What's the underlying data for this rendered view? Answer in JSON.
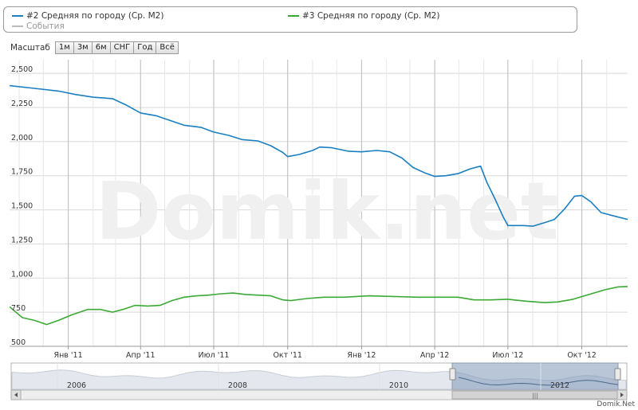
{
  "legend": {
    "items": [
      {
        "label": "#2 Средняя по городу (Ср. M2)",
        "color": "#1a7fc1"
      },
      {
        "label": "#3 Средняя по городу (Ср. M2)",
        "color": "#3aaa35"
      },
      {
        "label": "События",
        "color": "#bbbbbb"
      }
    ]
  },
  "scale": {
    "label": "Масштаб",
    "buttons": [
      "1м",
      "3м",
      "6м",
      "СНГ",
      "Год",
      "Всё"
    ]
  },
  "watermark": "Domik.net",
  "credit": "Domik.Net",
  "navigator": {
    "years": [
      "2006",
      "2008",
      "2010",
      "2012"
    ],
    "handle_label": "|||"
  },
  "chart_data": {
    "type": "line",
    "x_ticks": [
      "Янв '11",
      "Апр '11",
      "Июл '11",
      "Окт '11",
      "Янв '12",
      "Апр '12",
      "Июл '12",
      "Окт '12"
    ],
    "y_ticks": [
      "500",
      "750",
      "1,000",
      "1,250",
      "1,500",
      "1,750",
      "2,000",
      "2,250",
      "2,500"
    ],
    "ylim": [
      500,
      2600
    ],
    "x_range": [
      "2010-10-20",
      "2012-11-27"
    ],
    "grid": true,
    "legend_position": "top",
    "series": [
      {
        "name": "#2 Средняя по городу (Ср. M2)",
        "color": "#1a7fc1",
        "points": [
          [
            "2010-10-20",
            2410
          ],
          [
            "2010-11-20",
            2390
          ],
          [
            "2010-12-20",
            2370
          ],
          [
            "2011-01-10",
            2345
          ],
          [
            "2011-02-01",
            2325
          ],
          [
            "2011-02-25",
            2315
          ],
          [
            "2011-03-15",
            2265
          ],
          [
            "2011-04-01",
            2210
          ],
          [
            "2011-04-20",
            2190
          ],
          [
            "2011-05-05",
            2160
          ],
          [
            "2011-05-25",
            2120
          ],
          [
            "2011-06-15",
            2105
          ],
          [
            "2011-07-01",
            2070
          ],
          [
            "2011-07-20",
            2045
          ],
          [
            "2011-08-05",
            2015
          ],
          [
            "2011-08-25",
            2005
          ],
          [
            "2011-09-10",
            1970
          ],
          [
            "2011-09-25",
            1920
          ],
          [
            "2011-10-01",
            1890
          ],
          [
            "2011-10-15",
            1905
          ],
          [
            "2011-11-01",
            1935
          ],
          [
            "2011-11-10",
            1960
          ],
          [
            "2011-11-25",
            1955
          ],
          [
            "2011-12-15",
            1930
          ],
          [
            "2012-01-01",
            1925
          ],
          [
            "2012-01-20",
            1935
          ],
          [
            "2012-02-05",
            1925
          ],
          [
            "2012-02-20",
            1880
          ],
          [
            "2012-03-05",
            1810
          ],
          [
            "2012-03-20",
            1770
          ],
          [
            "2012-04-01",
            1745
          ],
          [
            "2012-04-15",
            1750
          ],
          [
            "2012-04-30",
            1765
          ],
          [
            "2012-05-15",
            1800
          ],
          [
            "2012-05-28",
            1820
          ],
          [
            "2012-06-05",
            1700
          ],
          [
            "2012-06-15",
            1580
          ],
          [
            "2012-06-25",
            1450
          ],
          [
            "2012-07-01",
            1385
          ],
          [
            "2012-07-20",
            1385
          ],
          [
            "2012-08-01",
            1380
          ],
          [
            "2012-08-15",
            1405
          ],
          [
            "2012-08-28",
            1430
          ],
          [
            "2012-09-10",
            1510
          ],
          [
            "2012-09-22",
            1600
          ],
          [
            "2012-10-01",
            1605
          ],
          [
            "2012-10-12",
            1560
          ],
          [
            "2012-10-25",
            1480
          ],
          [
            "2012-11-10",
            1455
          ],
          [
            "2012-11-27",
            1430
          ]
        ]
      },
      {
        "name": "#3 Средняя по городу (Ср. M2)",
        "color": "#3aaa35",
        "points": [
          [
            "2010-10-20",
            790
          ],
          [
            "2010-11-05",
            710
          ],
          [
            "2010-11-20",
            690
          ],
          [
            "2010-12-05",
            660
          ],
          [
            "2010-12-20",
            690
          ],
          [
            "2011-01-05",
            730
          ],
          [
            "2011-01-25",
            770
          ],
          [
            "2011-02-10",
            770
          ],
          [
            "2011-02-25",
            750
          ],
          [
            "2011-03-10",
            770
          ],
          [
            "2011-03-25",
            800
          ],
          [
            "2011-04-10",
            795
          ],
          [
            "2011-04-25",
            800
          ],
          [
            "2011-05-10",
            835
          ],
          [
            "2011-05-25",
            860
          ],
          [
            "2011-06-10",
            870
          ],
          [
            "2011-06-25",
            875
          ],
          [
            "2011-07-10",
            885
          ],
          [
            "2011-07-25",
            890
          ],
          [
            "2011-08-10",
            880
          ],
          [
            "2011-08-25",
            875
          ],
          [
            "2011-09-10",
            870
          ],
          [
            "2011-09-25",
            840
          ],
          [
            "2011-10-05",
            835
          ],
          [
            "2011-10-25",
            850
          ],
          [
            "2011-11-15",
            860
          ],
          [
            "2011-12-10",
            860
          ],
          [
            "2012-01-10",
            870
          ],
          [
            "2012-02-10",
            865
          ],
          [
            "2012-03-10",
            860
          ],
          [
            "2012-04-10",
            860
          ],
          [
            "2012-04-30",
            860
          ],
          [
            "2012-05-20",
            840
          ],
          [
            "2012-06-10",
            840
          ],
          [
            "2012-07-01",
            845
          ],
          [
            "2012-07-25",
            830
          ],
          [
            "2012-08-15",
            820
          ],
          [
            "2012-09-01",
            825
          ],
          [
            "2012-09-20",
            845
          ],
          [
            "2012-10-10",
            880
          ],
          [
            "2012-10-30",
            915
          ],
          [
            "2012-11-15",
            935
          ],
          [
            "2012-11-27",
            938
          ]
        ]
      }
    ]
  }
}
